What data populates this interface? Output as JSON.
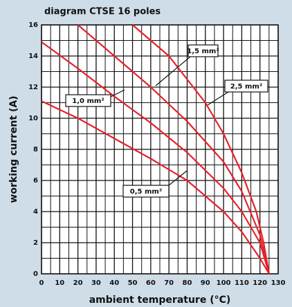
{
  "chart_data": {
    "type": "line",
    "title": "diagram CTSE 16 poles",
    "xlabel": "ambient temperature (°C)",
    "ylabel": "working current (A)",
    "xlim": [
      0,
      130
    ],
    "ylim": [
      0,
      16
    ],
    "xticks": [
      0,
      10,
      20,
      30,
      40,
      50,
      60,
      70,
      80,
      90,
      100,
      110,
      120,
      130
    ],
    "yticks": [
      0,
      2,
      4,
      6,
      8,
      10,
      12,
      14,
      16
    ],
    "minor_xticks": [
      5,
      15,
      25,
      35,
      45,
      55,
      65,
      75,
      85,
      95,
      105,
      115,
      125
    ],
    "minor_yticks": [
      1,
      3,
      5,
      7,
      9,
      11,
      13,
      15
    ],
    "grid": true,
    "series": [
      {
        "name": "0,5 mm²",
        "color": "#e8202a",
        "x": [
          0,
          20,
          40,
          60,
          80,
          100,
          110,
          120,
          125
        ],
        "values": [
          11.1,
          10,
          8.7,
          7.4,
          6,
          4,
          2.7,
          1,
          0
        ]
      },
      {
        "name": "1,0 mm²",
        "color": "#e8202a",
        "x": [
          0,
          20,
          40,
          60,
          80,
          100,
          110,
          120,
          125
        ],
        "values": [
          14.9,
          13.2,
          11.4,
          9.7,
          7.8,
          5.5,
          4,
          2,
          0
        ]
      },
      {
        "name": "1,5 mm²",
        "color": "#e8202a",
        "x": [
          20,
          40,
          60,
          80,
          100,
          110,
          120,
          125
        ],
        "values": [
          16,
          14,
          12,
          9.8,
          7.2,
          5.3,
          2.5,
          0
        ]
      },
      {
        "name": "2,5 mm²",
        "color": "#e8202a",
        "x": [
          50,
          70,
          90,
          100,
          110,
          118,
          122,
          125
        ],
        "values": [
          16,
          14,
          11,
          9,
          6.5,
          4,
          2,
          0
        ]
      }
    ]
  }
}
